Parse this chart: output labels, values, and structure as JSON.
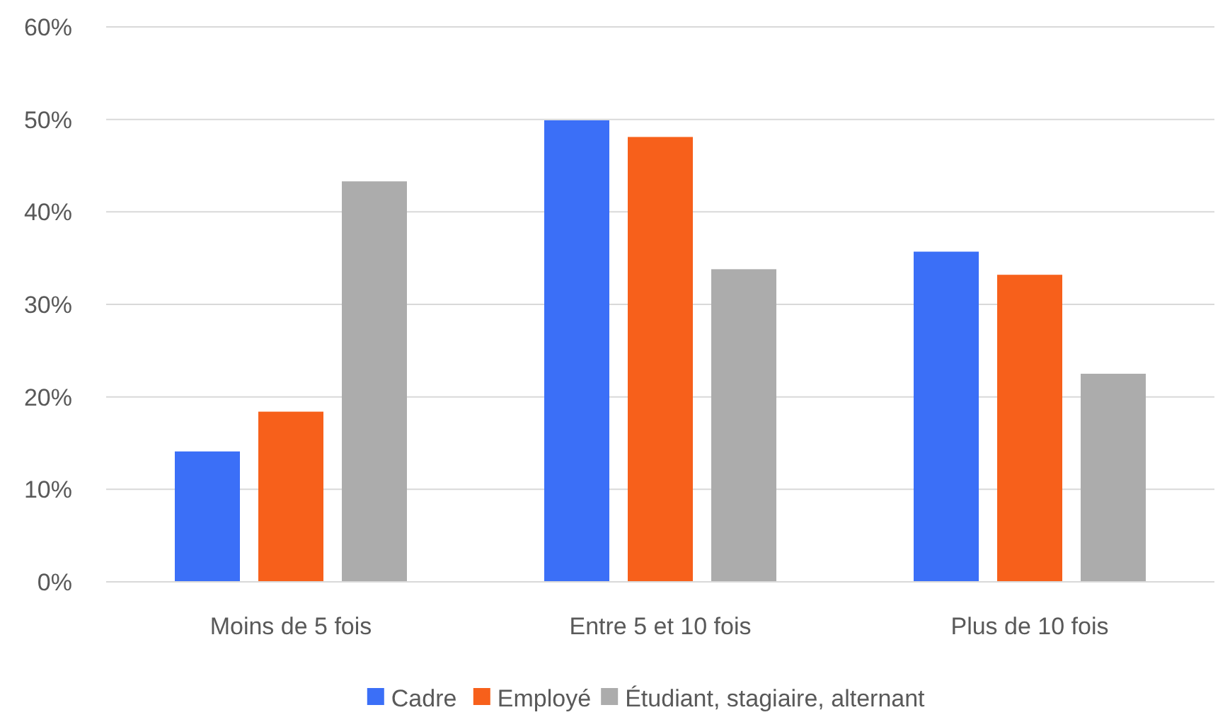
{
  "chart_data": {
    "type": "bar",
    "categories": [
      "Moins de 5 fois",
      "Entre 5 et 10 fois",
      "Plus de 10 fois"
    ],
    "series": [
      {
        "name": "Cadre",
        "color": "#3b6ff7",
        "values": [
          14.1,
          49.9,
          35.7
        ]
      },
      {
        "name": "Employé",
        "color": "#f7601b",
        "values": [
          18.4,
          48.1,
          33.2
        ]
      },
      {
        "name": "Étudiant, stagiaire, alternant",
        "color": "#acacac",
        "values": [
          43.3,
          33.8,
          22.5
        ]
      }
    ],
    "ylim": [
      0,
      60
    ],
    "yticks": [
      {
        "value": 0,
        "label": "0%"
      },
      {
        "value": 10,
        "label": "10%"
      },
      {
        "value": 20,
        "label": "20%"
      },
      {
        "value": 30,
        "label": "30%"
      },
      {
        "value": 40,
        "label": "40%"
      },
      {
        "value": 50,
        "label": "50%"
      },
      {
        "value": 60,
        "label": "60%"
      }
    ],
    "grid": "y",
    "legend": "bottom"
  }
}
